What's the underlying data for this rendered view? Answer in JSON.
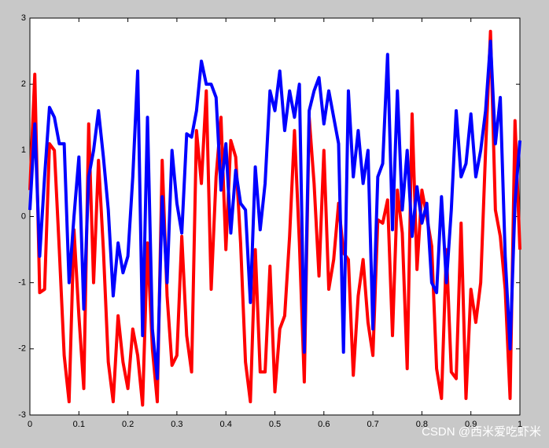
{
  "chart_data": {
    "type": "line",
    "x": [
      0,
      0.01,
      0.02,
      0.03,
      0.04,
      0.05,
      0.06,
      0.07,
      0.08,
      0.09,
      0.1,
      0.11,
      0.12,
      0.13,
      0.14,
      0.15,
      0.16,
      0.17,
      0.18,
      0.19,
      0.2,
      0.21,
      0.22,
      0.23,
      0.24,
      0.25,
      0.26,
      0.27,
      0.28,
      0.29,
      0.3,
      0.31,
      0.32,
      0.33,
      0.34,
      0.35,
      0.36,
      0.37,
      0.38,
      0.39,
      0.4,
      0.41,
      0.42,
      0.43,
      0.44,
      0.45,
      0.46,
      0.47,
      0.48,
      0.49,
      0.5,
      0.51,
      0.52,
      0.53,
      0.54,
      0.55,
      0.56,
      0.57,
      0.58,
      0.59,
      0.6,
      0.61,
      0.62,
      0.63,
      0.64,
      0.65,
      0.66,
      0.67,
      0.68,
      0.69,
      0.7,
      0.71,
      0.72,
      0.73,
      0.74,
      0.75,
      0.76,
      0.77,
      0.78,
      0.79,
      0.8,
      0.81,
      0.82,
      0.83,
      0.84,
      0.85,
      0.86,
      0.87,
      0.88,
      0.89,
      0.9,
      0.91,
      0.92,
      0.93,
      0.94,
      0.95,
      0.96,
      0.97,
      0.98,
      0.99,
      1
    ],
    "series": [
      {
        "color": "#ff0000",
        "values": [
          0.4,
          2.15,
          -1.15,
          -1.1,
          1.1,
          1.0,
          -0.5,
          -2.1,
          -2.8,
          -0.2,
          -1.5,
          -2.6,
          1.4,
          -1.0,
          0.85,
          -0.5,
          -2.2,
          -2.8,
          -1.5,
          -2.2,
          -2.6,
          -1.7,
          -2.1,
          -2.85,
          -0.4,
          -2.0,
          -2.8,
          0.85,
          -1.2,
          -2.25,
          -2.1,
          -0.3,
          -1.8,
          -2.35,
          1.3,
          0.5,
          1.9,
          -1.1,
          0.6,
          1.5,
          -0.5,
          1.15,
          0.9,
          -0.4,
          -2.2,
          -2.8,
          -0.5,
          -2.35,
          -2.35,
          -0.75,
          -2.65,
          -1.7,
          -1.5,
          -0.3,
          1.3,
          -0.4,
          -2.5,
          1.5,
          0.5,
          -0.9,
          1.0,
          -1.1,
          -0.65,
          0.2,
          -0.55,
          -0.65,
          -2.4,
          -1.2,
          -0.65,
          -1.6,
          -2.1,
          -0.05,
          -0.1,
          0.25,
          -1.8,
          0.4,
          -0.25,
          -2.3,
          1.55,
          -0.8,
          0.4,
          0.0,
          -0.45,
          -2.3,
          -2.75,
          -0.5,
          -2.35,
          -2.45,
          -0.1,
          -2.75,
          -1.1,
          -1.6,
          -1.0,
          1.0,
          2.8,
          0.1,
          -0.3,
          -1.1,
          -2.75,
          1.45,
          -0.5
        ]
      },
      {
        "color": "#0000ff",
        "values": [
          0.1,
          1.4,
          -0.6,
          0.6,
          1.65,
          1.5,
          1.1,
          1.1,
          -1.0,
          0.0,
          0.9,
          -1.4,
          0.6,
          1.0,
          1.6,
          0.9,
          0.1,
          -1.2,
          -0.4,
          -0.85,
          -0.6,
          0.6,
          2.2,
          -1.8,
          1.5,
          -1.7,
          -2.45,
          0.3,
          -1.0,
          1.0,
          0.2,
          -0.25,
          1.25,
          1.2,
          1.6,
          2.35,
          2.0,
          2.0,
          1.8,
          0.4,
          1.1,
          -0.25,
          0.7,
          0.2,
          0.1,
          -1.3,
          0.75,
          -0.2,
          0.5,
          1.9,
          1.6,
          2.2,
          1.3,
          1.9,
          1.5,
          2.0,
          -2.05,
          1.6,
          1.9,
          2.1,
          1.4,
          1.9,
          1.5,
          1.1,
          -2.05,
          1.9,
          0.6,
          1.3,
          0.5,
          1.0,
          -1.7,
          0.6,
          0.8,
          2.45,
          -0.2,
          1.9,
          0.1,
          1.0,
          -0.3,
          0.45,
          -0.1,
          0.2,
          -1.0,
          -1.15,
          0.3,
          -1.0,
          0.1,
          1.6,
          0.6,
          0.8,
          1.55,
          0.6,
          1.0,
          1.6,
          2.65,
          1.1,
          1.8,
          -0.6,
          -2.0,
          0.2,
          1.15
        ]
      }
    ],
    "xlim": [
      0,
      1
    ],
    "xticks": [
      0,
      0.1,
      0.2,
      0.3,
      0.4,
      0.5,
      0.6,
      0.7,
      0.8,
      0.9,
      1
    ],
    "ylim": [
      -3,
      3
    ],
    "yticks": [
      -3,
      -2,
      -1,
      0,
      1,
      2,
      3
    ],
    "grid": false
  },
  "watermark": "CSDN @西米爱吃虾米"
}
